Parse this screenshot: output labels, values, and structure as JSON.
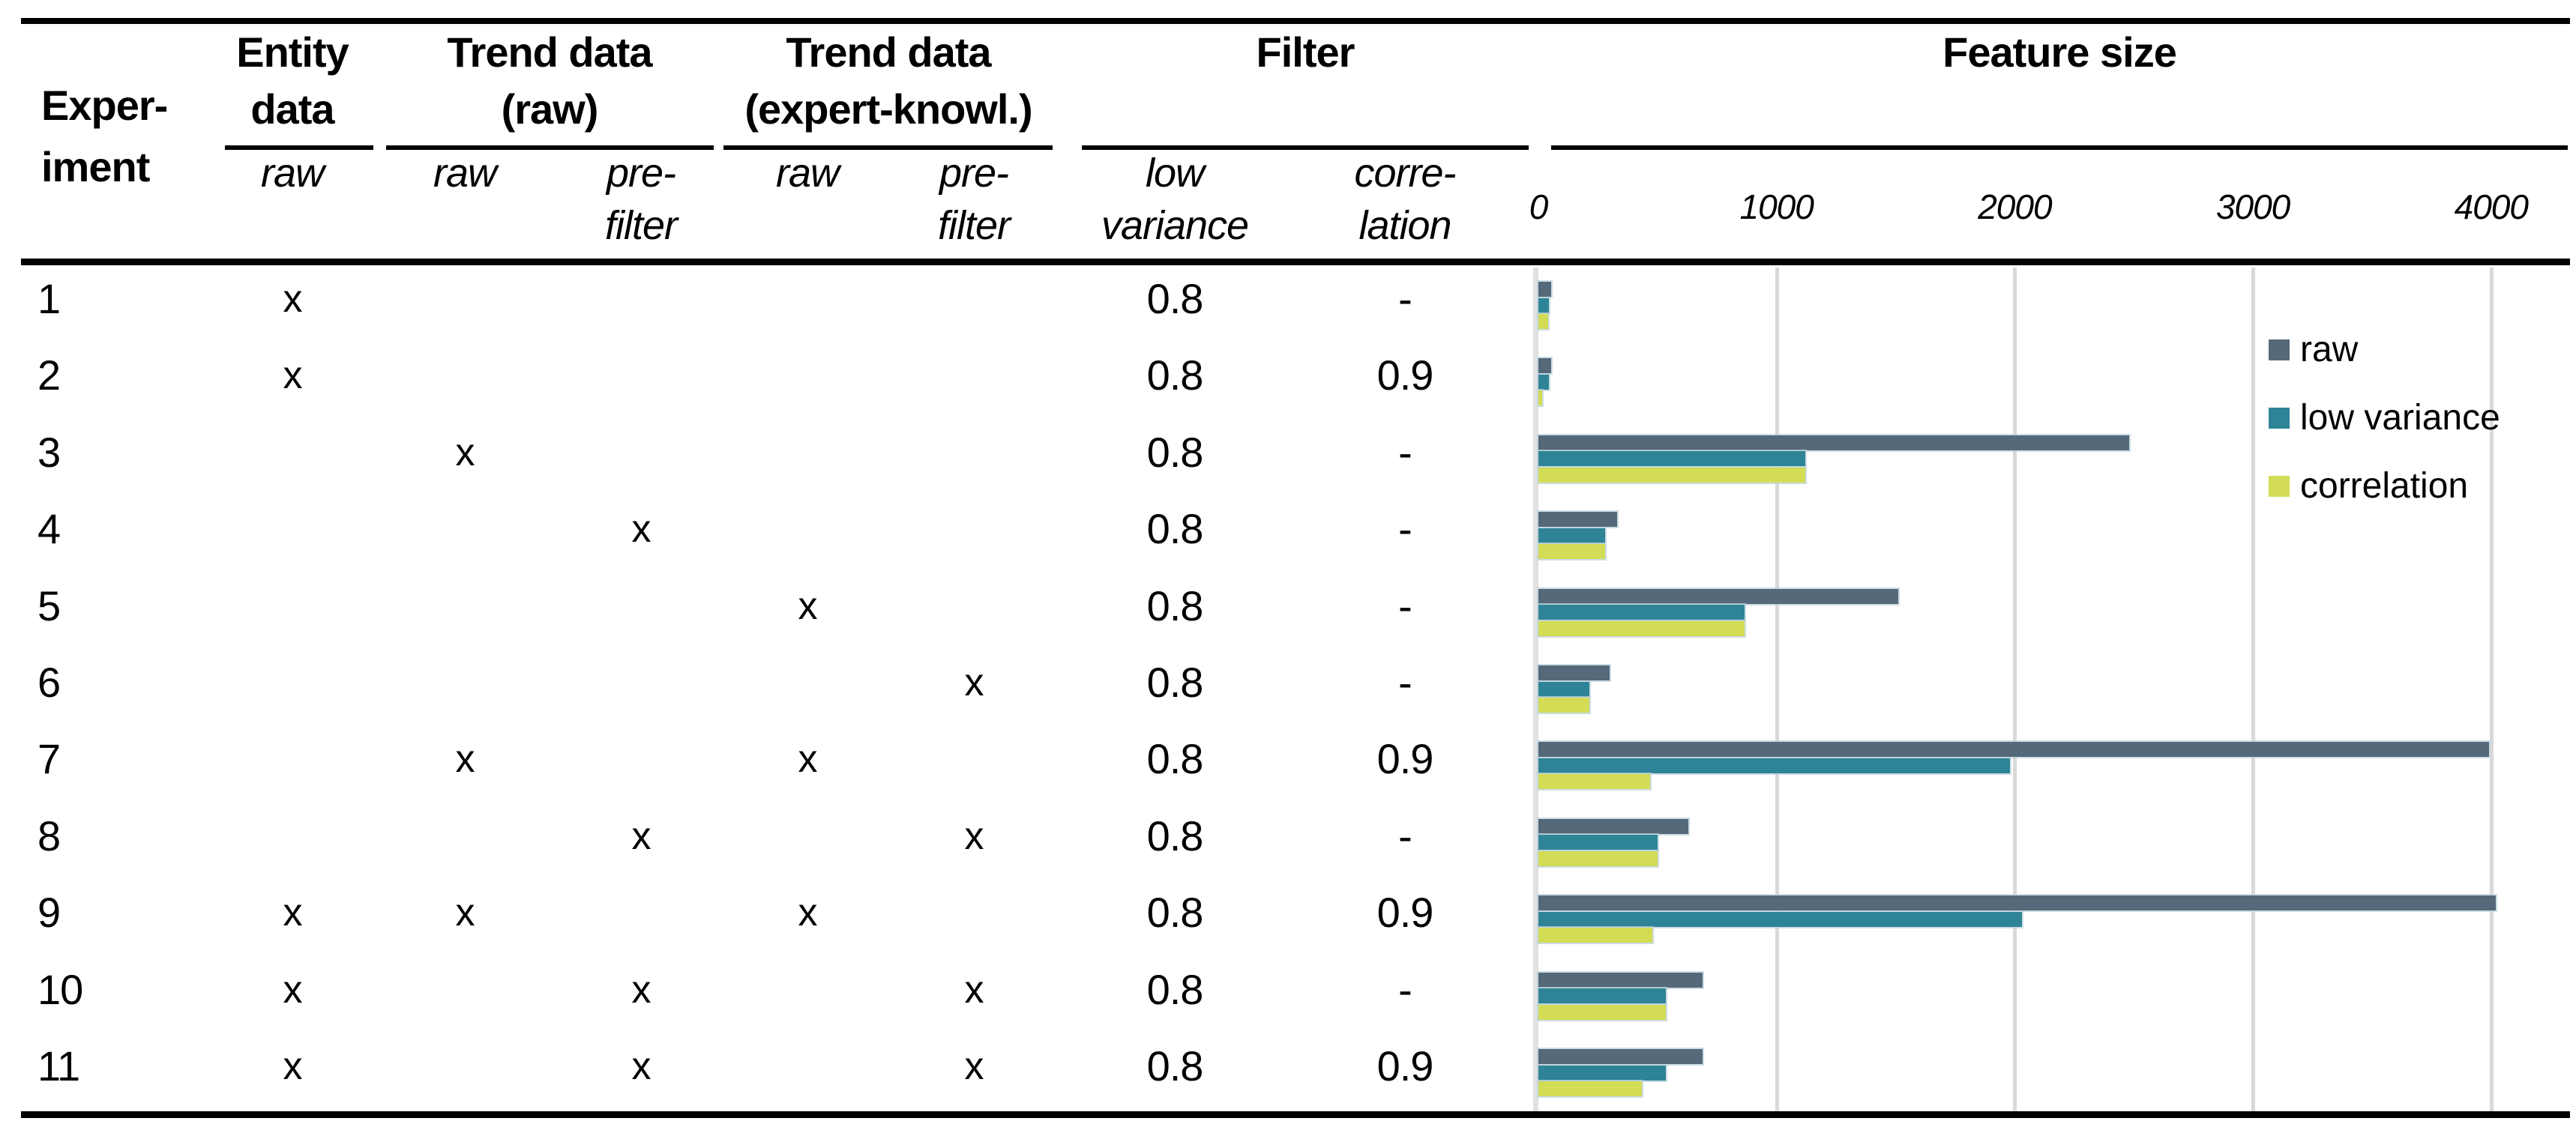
{
  "header": {
    "experiment": "Exper-\niment",
    "entity": {
      "title": "Entity\ndata",
      "sub_raw": "raw"
    },
    "trend_raw": {
      "title": "Trend data\n(raw)",
      "sub_raw": "raw",
      "sub_pre": "pre-\nfilter"
    },
    "trend_expert": {
      "title": "Trend data\n(expert-knowl.)",
      "sub_raw": "raw",
      "sub_pre": "pre-\nfilter"
    },
    "filter": {
      "title": "Filter",
      "sub_low": "low\nvariance",
      "sub_corr": "corre-\nlation"
    }
  },
  "rows": [
    {
      "n": "1",
      "marks": {
        "entity": "x",
        "trend_raw": "",
        "trend_pre": "",
        "expert_raw": "",
        "expert_pre": ""
      },
      "low_variance": "0.8",
      "correlation": "-"
    },
    {
      "n": "2",
      "marks": {
        "entity": "x",
        "trend_raw": "",
        "trend_pre": "",
        "expert_raw": "",
        "expert_pre": ""
      },
      "low_variance": "0.8",
      "correlation": "0.9"
    },
    {
      "n": "3",
      "marks": {
        "entity": "",
        "trend_raw": "x",
        "trend_pre": "",
        "expert_raw": "",
        "expert_pre": ""
      },
      "low_variance": "0.8",
      "correlation": "-"
    },
    {
      "n": "4",
      "marks": {
        "entity": "",
        "trend_raw": "",
        "trend_pre": "x",
        "expert_raw": "",
        "expert_pre": ""
      },
      "low_variance": "0.8",
      "correlation": "-"
    },
    {
      "n": "5",
      "marks": {
        "entity": "",
        "trend_raw": "",
        "trend_pre": "",
        "expert_raw": "x",
        "expert_pre": ""
      },
      "low_variance": "0.8",
      "correlation": "-"
    },
    {
      "n": "6",
      "marks": {
        "entity": "",
        "trend_raw": "",
        "trend_pre": "",
        "expert_raw": "",
        "expert_pre": "x"
      },
      "low_variance": "0.8",
      "correlation": "-"
    },
    {
      "n": "7",
      "marks": {
        "entity": "",
        "trend_raw": "x",
        "trend_pre": "",
        "expert_raw": "x",
        "expert_pre": ""
      },
      "low_variance": "0.8",
      "correlation": "0.9"
    },
    {
      "n": "8",
      "marks": {
        "entity": "",
        "trend_raw": "",
        "trend_pre": "x",
        "expert_raw": "",
        "expert_pre": "x"
      },
      "low_variance": "0.8",
      "correlation": "-"
    },
    {
      "n": "9",
      "marks": {
        "entity": "x",
        "trend_raw": "x",
        "trend_pre": "",
        "expert_raw": "x",
        "expert_pre": ""
      },
      "low_variance": "0.8",
      "correlation": "0.9"
    },
    {
      "n": "10",
      "marks": {
        "entity": "x",
        "trend_raw": "",
        "trend_pre": "x",
        "expert_raw": "",
        "expert_pre": "x"
      },
      "low_variance": "0.8",
      "correlation": "-"
    },
    {
      "n": "11",
      "marks": {
        "entity": "x",
        "trend_raw": "",
        "trend_pre": "x",
        "expert_raw": "",
        "expert_pre": "x"
      },
      "low_variance": "0.8",
      "correlation": "0.9"
    }
  ],
  "chart_data": {
    "type": "bar",
    "orientation": "horizontal",
    "title": "Feature size",
    "categories": [
      "1",
      "2",
      "3",
      "4",
      "5",
      "6",
      "7",
      "8",
      "9",
      "10",
      "11"
    ],
    "x_ticks": [
      0,
      1000,
      2000,
      3000,
      4000
    ],
    "xlim": [
      0,
      4350
    ],
    "grid": "vertical-only",
    "legend_position": "upper-right",
    "series": [
      {
        "name": "raw",
        "color": "#54697a",
        "values": [
          55,
          55,
          2480,
          330,
          1510,
          300,
          3990,
          630,
          4020,
          690,
          690
        ]
      },
      {
        "name": "low variance",
        "color": "#2e8496",
        "values": [
          45,
          45,
          1120,
          280,
          865,
          215,
          1980,
          500,
          2030,
          535,
          535
        ]
      },
      {
        "name": "correlation",
        "color": "#d2dc55",
        "values": [
          40,
          15,
          1120,
          280,
          865,
          215,
          470,
          500,
          480,
          535,
          435
        ]
      }
    ]
  }
}
